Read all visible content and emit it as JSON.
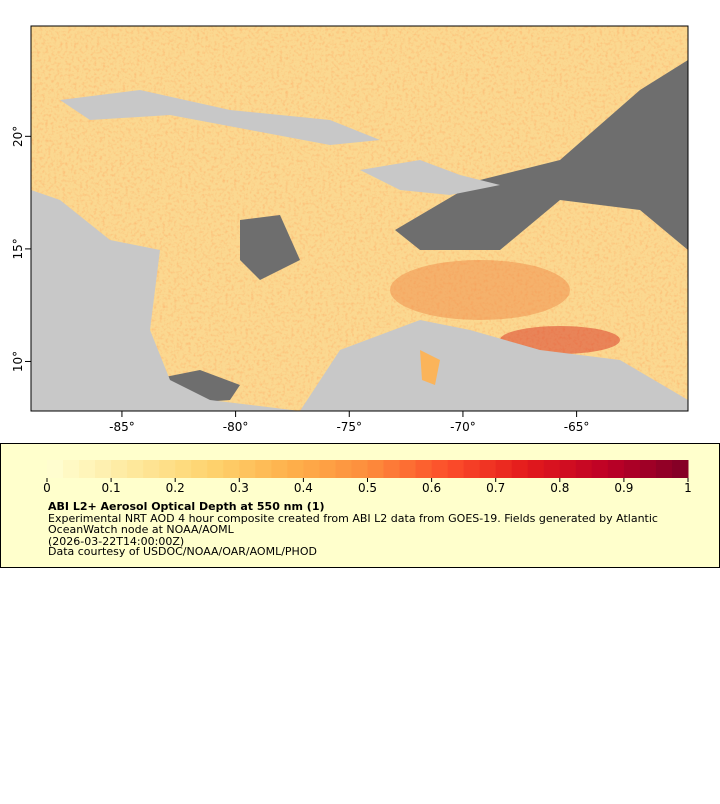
{
  "map": {
    "lonlim": [
      -89,
      -60.1
    ],
    "latlim": [
      7.8,
      24.9
    ],
    "lon_ticks": [
      {
        "value": -85,
        "label": "-85°"
      },
      {
        "value": -80,
        "label": "-80°"
      },
      {
        "value": -75,
        "label": "-75°"
      },
      {
        "value": -70,
        "label": "-70°"
      },
      {
        "value": -65,
        "label": "-65°"
      }
    ],
    "lat_ticks": [
      {
        "value": 20,
        "label": "20°"
      },
      {
        "value": 15,
        "label": "15°"
      },
      {
        "value": 10,
        "label": "10°"
      }
    ]
  },
  "colorbar": {
    "ticks": [
      0,
      0.1,
      0.2,
      0.3,
      0.4,
      0.5,
      0.6,
      0.7,
      0.8,
      0.9,
      1
    ],
    "colors": [
      "#ffffd4",
      "#feeaa0",
      "#fed470",
      "#feb24c",
      "#fd8d3c",
      "#fc4e2a",
      "#e31a1c",
      "#bd0026",
      "#800026"
    ]
  },
  "caption": {
    "title": "ABI L2+ Aerosol Optical Depth at 550 nm (1)",
    "lines": [
      "Experimental NRT AOD 4 hour composite created from ABI L2 data from GOES-19. Fields generated by Atlantic",
      "OceanWatch node at NOAA/AOML",
      "(2026-03-22T14:00:00Z)",
      "Data courtesy of USDOC/NOAA/OAR/AOML/PHOD"
    ]
  }
}
